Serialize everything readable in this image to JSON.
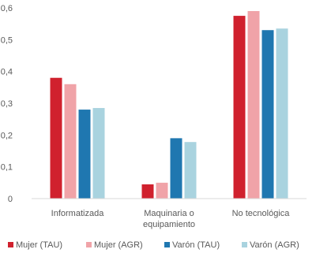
{
  "chart_data": {
    "type": "bar",
    "title": "",
    "xlabel": "",
    "ylabel": "",
    "ylim": [
      0,
      0.6
    ],
    "yticks": [
      0,
      0.1,
      0.2,
      0.3,
      0.4,
      0.5,
      0.6
    ],
    "ytick_labels": [
      "0",
      "0,1",
      "0,2",
      "0,3",
      "0,4",
      "0,5",
      "0,6"
    ],
    "grid": false,
    "legend_position": "bottom",
    "categories": [
      "Informatizada",
      "Maquinaria o equipamiento",
      "No tecnológica"
    ],
    "category_lines": [
      [
        "Informatizada"
      ],
      [
        "Maquinaria o",
        "equipamiento"
      ],
      [
        "No tecnológica"
      ]
    ],
    "series": [
      {
        "name": "Mujer (TAU)",
        "color": "#d0212e",
        "values": [
          0.38,
          0.045,
          0.575
        ]
      },
      {
        "name": "Mujer (AGR)",
        "color": "#f0a3a8",
        "values": [
          0.36,
          0.05,
          0.59
        ]
      },
      {
        "name": "Varón (TAU)",
        "color": "#1f77b0",
        "values": [
          0.28,
          0.19,
          0.53
        ]
      },
      {
        "name": "Varón (AGR)",
        "color": "#a9d3df",
        "values": [
          0.285,
          0.178,
          0.535
        ]
      }
    ]
  }
}
